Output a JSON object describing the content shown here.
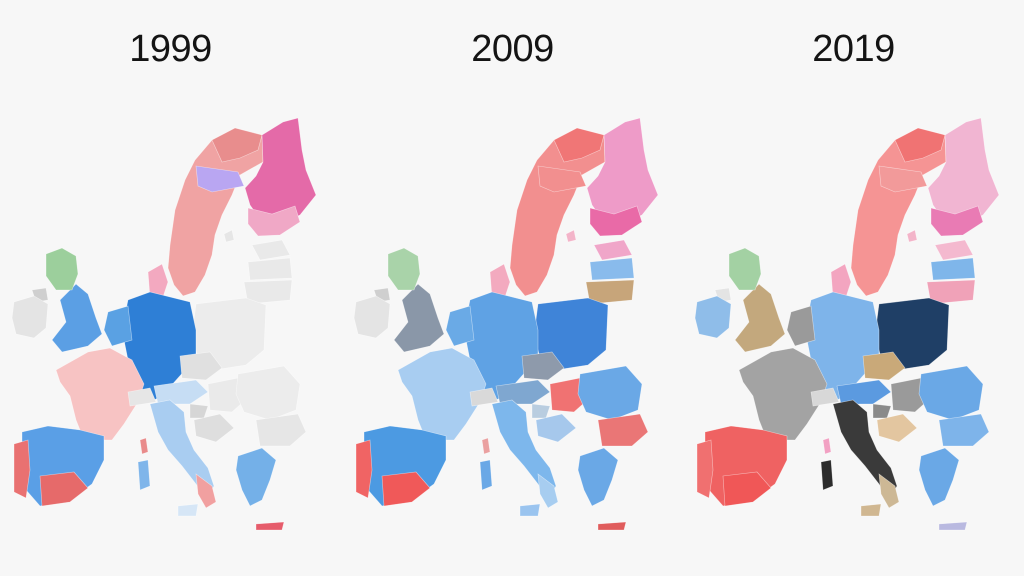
{
  "maps": [
    {
      "title": "1999",
      "colors": {
        "scandinavia": "#f0a3a3",
        "norway_north": "#e88d8d",
        "lapland": "#b9a6f2",
        "finland": "#e46aa8",
        "finland_south": "#f0a8c6",
        "estonia": "#e9e9e9",
        "latvia": "#e9e9e9",
        "lithuania": "#e9e9e9",
        "poland": "#ececec",
        "germany": "#2e7fd6",
        "benelux": "#5aa1e3",
        "denmark": "#f3a9c0",
        "uk": "#5b9fe4",
        "scotland": "#9ccf9c",
        "ireland": "#e4e4e4",
        "northern_ireland": "#cfcfcf",
        "france": "#f7c3c3",
        "spain": "#5a9fe6",
        "spain_south": "#e66a6a",
        "portugal": "#e97171",
        "italy": "#a9cdf1",
        "italy_south": "#f1a0a0",
        "austria": "#c6ddf4",
        "czechia": "#e0e0e0",
        "hungary": "#eaeaea",
        "romania": "#ececec",
        "bulgaria": "#e6e6e6",
        "greece": "#74b0e8",
        "crete": "#e65c6b",
        "baltic_islands": "#e6e6e6",
        "slovenia": "#d6d6d6",
        "croatia": "#dedede",
        "corsica": "#e98b8b",
        "sardinia": "#7fb5ea",
        "sicily": "#d6e6f6",
        "swiss": "#e6e6e6"
      }
    },
    {
      "title": "2009",
      "colors": {
        "scandinavia": "#f28f8f",
        "norway_north": "#f07676",
        "lapland": "#f28f8f",
        "finland": "#ee9bc8",
        "finland_south": "#e96aa7",
        "estonia": "#f0a6c9",
        "latvia": "#89bbec",
        "lithuania": "#c7a57a",
        "poland": "#3f84d8",
        "germany": "#5fa2e4",
        "benelux": "#6aaae6",
        "denmark": "#f3aabf",
        "uk": "#8a97a8",
        "scotland": "#a9d3a9",
        "ireland": "#e4e4e4",
        "northern_ireland": "#cfcfcf",
        "france": "#a8cdf1",
        "spain": "#4c9ae2",
        "spain_south": "#f05959",
        "portugal": "#f06464",
        "italy": "#7db7ec",
        "italy_south": "#a7cdf0",
        "austria": "#7fa7d0",
        "czechia": "#8e9aab",
        "hungary": "#f07272",
        "romania": "#6aa8e6",
        "bulgaria": "#ea7676",
        "greece": "#6aa8e6",
        "crete": "#e05c5c",
        "baltic_islands": "#f3b4c9",
        "slovenia": "#b9cde0",
        "croatia": "#a6c8ec",
        "corsica": "#eaa0a0",
        "sardinia": "#6aa8e6",
        "sicily": "#9ac4ef",
        "swiss": "#d9d9d9"
      }
    },
    {
      "title": "2019",
      "colors": {
        "scandinavia": "#f59494",
        "norway_north": "#f07373",
        "lapland": "#f29a9a",
        "finland": "#f1b5d2",
        "finland_south": "#e97bb4",
        "estonia": "#f4b9cf",
        "latvia": "#7fb6ea",
        "lithuania": "#f0a2b8",
        "poland": "#1f3f66",
        "germany": "#7eb4ea",
        "benelux": "#9a9a9a",
        "denmark": "#f3a5c0",
        "uk": "#c3a87d",
        "scotland": "#a3d1a3",
        "ireland": "#8fbde9",
        "northern_ireland": "#e4e4e4",
        "france": "#a3a3a3",
        "spain": "#ef6262",
        "spain_south": "#f05757",
        "portugal": "#f07070",
        "italy": "#3a3a3a",
        "italy_south": "#cdb895",
        "austria": "#5b9ae0",
        "czechia": "#c9a979",
        "hungary": "#9a9a9a",
        "romania": "#6aa8e6",
        "bulgaria": "#7eb4ea",
        "greece": "#6aa8e6",
        "crete": "#b9b9e0",
        "baltic_islands": "#f3b4c9",
        "slovenia": "#8a8a8a",
        "croatia": "#e3c6a0",
        "corsica": "#f2a1c3",
        "sardinia": "#2c2c2c",
        "sicily": "#d0b791",
        "swiss": "#d8d8d8"
      }
    }
  ]
}
